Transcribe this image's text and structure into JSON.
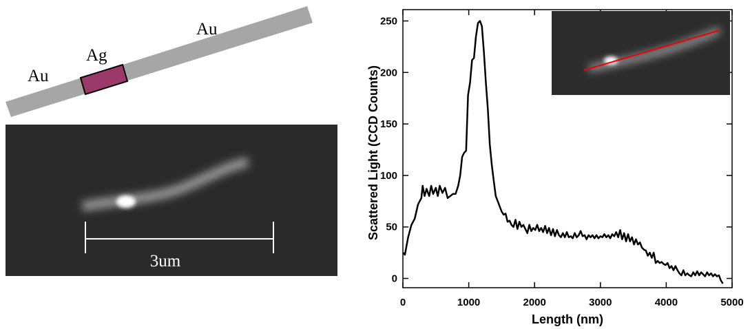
{
  "diagram": {
    "labels": [
      "Au",
      "Ag",
      "Au"
    ]
  },
  "image": {
    "scale_bar": "3um"
  },
  "chart_data": {
    "type": "line",
    "xlabel": "Length (nm)",
    "ylabel": "Scattered Light (CCD Counts)",
    "color": "#000000",
    "xlim": [
      0,
      5000
    ],
    "xticks": [
      0,
      1000,
      2000,
      3000,
      4000,
      5000
    ],
    "ylim": [
      -9,
      261
    ],
    "yticks": [
      0,
      50,
      100,
      150,
      200,
      250
    ],
    "x": [
      0,
      30,
      80,
      130,
      180,
      230,
      280,
      300,
      330,
      360,
      400,
      430,
      460,
      500,
      530,
      560,
      600,
      640,
      680,
      720,
      760,
      800,
      840,
      870,
      900,
      930,
      960,
      990,
      1020,
      1050,
      1080,
      1110,
      1140,
      1170,
      1200,
      1230,
      1260,
      1290,
      1320,
      1350,
      1380,
      1410,
      1440,
      1470,
      1500,
      1530,
      1560,
      1590,
      1620,
      1650,
      1680,
      1710,
      1740,
      1770,
      1800,
      1830,
      1860,
      1890,
      1920,
      1950,
      1980,
      2010,
      2040,
      2070,
      2100,
      2130,
      2160,
      2190,
      2220,
      2250,
      2280,
      2310,
      2340,
      2370,
      2400,
      2430,
      2460,
      2490,
      2520,
      2550,
      2580,
      2610,
      2640,
      2670,
      2700,
      2730,
      2760,
      2790,
      2820,
      2850,
      2880,
      2910,
      2940,
      2970,
      3000,
      3030,
      3060,
      3090,
      3120,
      3150,
      3180,
      3210,
      3240,
      3270,
      3300,
      3330,
      3360,
      3390,
      3420,
      3450,
      3480,
      3510,
      3540,
      3570,
      3600,
      3630,
      3660,
      3690,
      3720,
      3750,
      3780,
      3810,
      3840,
      3870,
      3900,
      3930,
      3960,
      3990,
      4020,
      4050,
      4080,
      4110,
      4140,
      4170,
      4200,
      4230,
      4260,
      4290,
      4320,
      4350,
      4380,
      4410,
      4440,
      4470,
      4500,
      4530,
      4560,
      4590,
      4620,
      4650,
      4680,
      4710,
      4740,
      4770,
      4800,
      4830,
      4860
    ],
    "values": [
      25,
      23,
      40,
      52,
      58,
      72,
      78,
      90,
      80,
      87,
      80,
      90,
      82,
      88,
      80,
      90,
      83,
      88,
      78,
      80,
      82,
      82,
      90,
      100,
      118,
      122,
      124,
      178,
      190,
      212,
      214,
      235,
      248,
      250,
      245,
      220,
      190,
      165,
      130,
      110,
      95,
      80,
      75,
      70,
      65,
      62,
      63,
      55,
      56,
      52,
      50,
      57,
      48,
      55,
      50,
      52,
      48,
      44,
      52,
      46,
      49,
      47,
      52,
      46,
      49,
      45,
      51,
      44,
      49,
      42,
      48,
      41,
      47,
      42,
      40,
      44,
      40,
      45,
      40,
      41,
      39,
      44,
      40,
      42,
      46,
      41,
      42,
      38,
      42,
      40,
      42,
      39,
      42,
      39,
      41,
      40,
      43,
      40,
      42,
      39,
      43,
      41,
      45,
      40,
      47,
      38,
      44,
      36,
      43,
      36,
      40,
      33,
      38,
      33,
      35,
      30,
      28,
      27,
      22,
      25,
      20,
      25,
      15,
      17,
      15,
      16,
      14,
      13,
      15,
      10,
      12,
      8,
      12,
      8,
      5,
      3,
      8,
      3,
      5,
      3,
      2,
      6,
      3,
      7,
      3,
      6,
      4,
      2,
      6,
      3,
      5,
      2,
      4,
      2,
      3,
      -2,
      -5
    ]
  }
}
